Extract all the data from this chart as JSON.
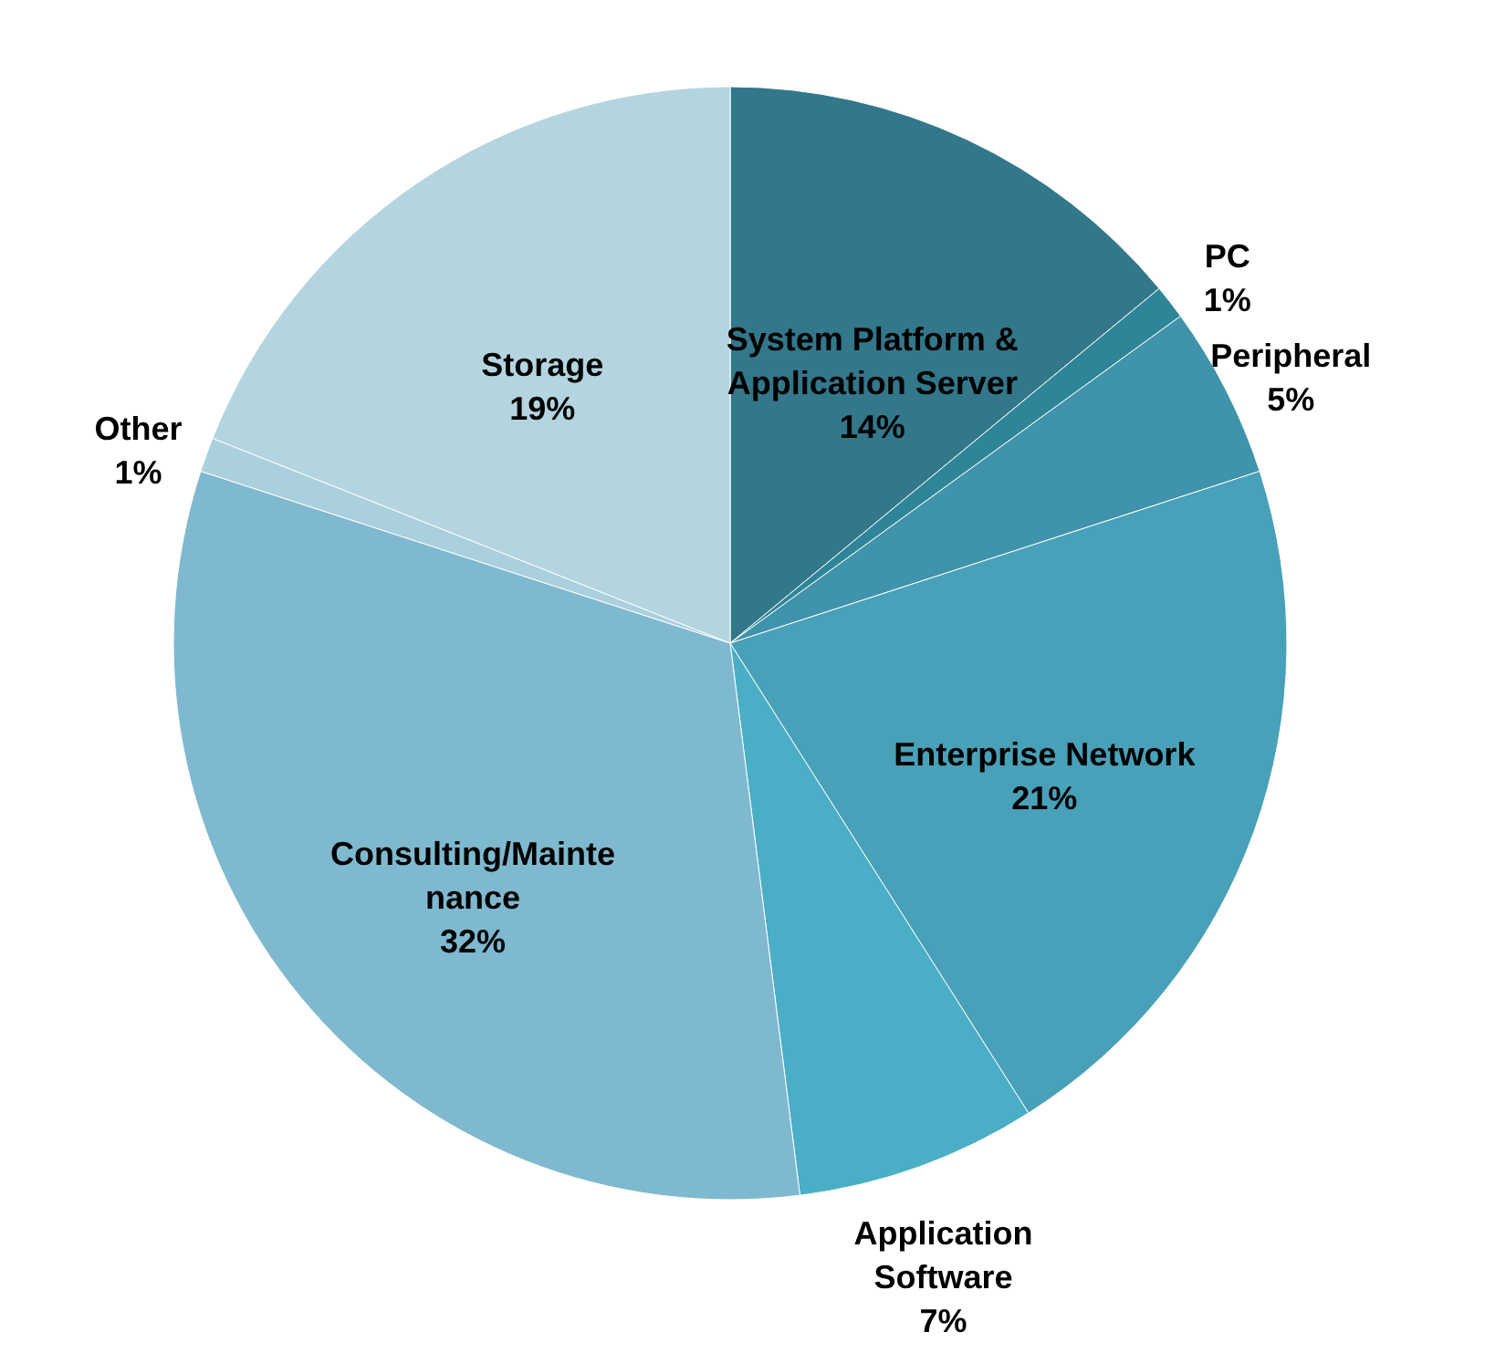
{
  "chart_data": {
    "type": "pie",
    "categories": [
      "System Platform & Application Server",
      "PC",
      "Peripheral",
      "Enterprise Network",
      "Application Software",
      "Consulting/Maintenance",
      "Other",
      "Storage"
    ],
    "values": [
      14,
      1,
      5,
      21,
      7,
      32,
      1,
      19
    ],
    "colors": [
      "#33778a",
      "#2f8598",
      "#3f93aa",
      "#48a1b8",
      "#4aaec6",
      "#7fb9cf",
      "#a9d0dc",
      "#b4d5e0"
    ],
    "value_labels": [
      "14%",
      "1%",
      "5%",
      "21%",
      "7%",
      "32%",
      "1%",
      "19%"
    ]
  }
}
